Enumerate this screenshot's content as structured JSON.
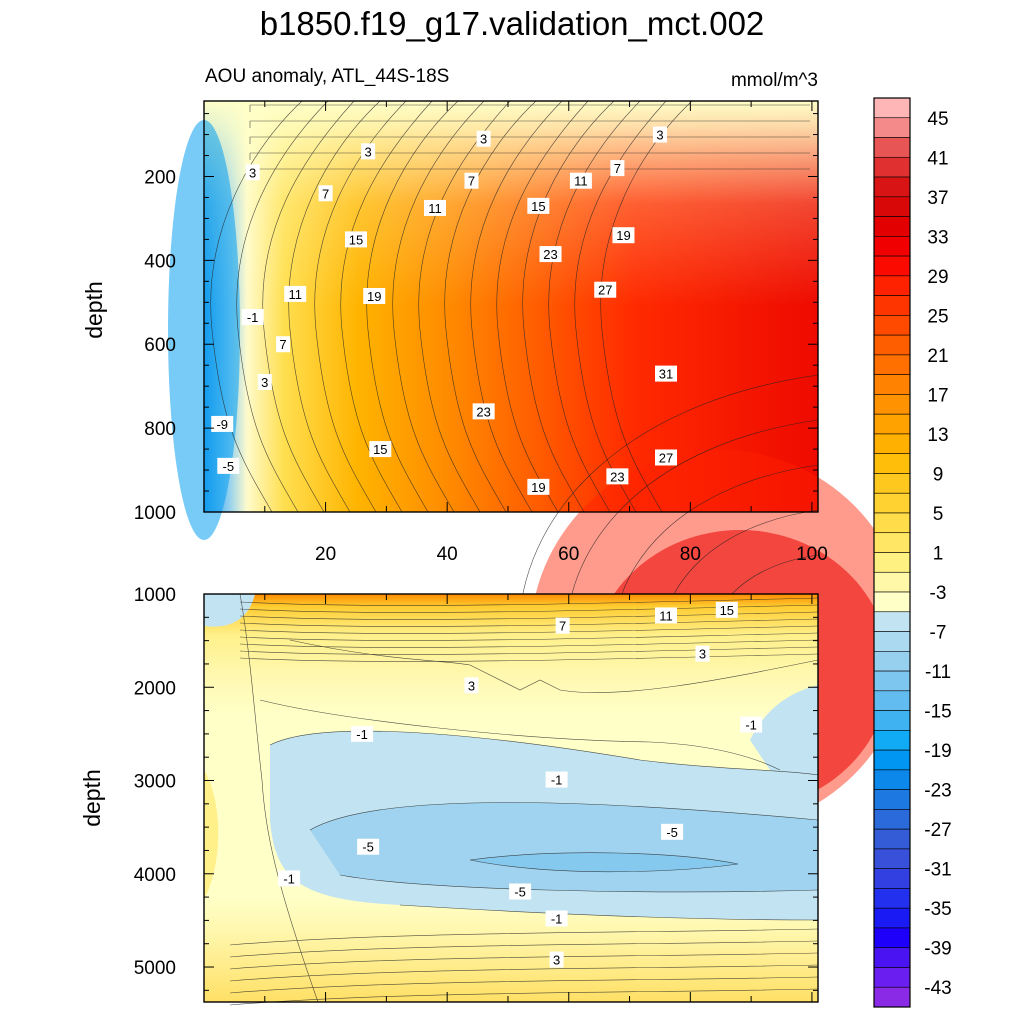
{
  "chart_data": [
    {
      "type": "heatmap",
      "title": "b1850.f19_g17.validation_mct.002",
      "subtitle_left": "AOU anomaly, ATL_44S-18S",
      "subtitle_right": "mmol/m^3",
      "xlabel": "",
      "ylabel": "depth",
      "xlim": [
        0,
        101
      ],
      "ylim": [
        1000,
        20
      ],
      "y_reversed": true,
      "xticks": [
        20,
        40,
        60,
        80,
        100
      ],
      "yticks": [
        200,
        400,
        600,
        800,
        1000
      ],
      "contour_labels": [
        {
          "text": "3",
          "x": 8,
          "y": 190
        },
        {
          "text": "3",
          "x": 27,
          "y": 140
        },
        {
          "text": "3",
          "x": 46,
          "y": 110
        },
        {
          "text": "3",
          "x": 75,
          "y": 100
        },
        {
          "text": "7",
          "x": 20,
          "y": 240
        },
        {
          "text": "7",
          "x": 44,
          "y": 210
        },
        {
          "text": "7",
          "x": 68,
          "y": 180
        },
        {
          "text": "11",
          "x": 38,
          "y": 275
        },
        {
          "text": "11",
          "x": 62,
          "y": 210
        },
        {
          "text": "15",
          "x": 25,
          "y": 350
        },
        {
          "text": "15",
          "x": 55,
          "y": 270
        },
        {
          "text": "19",
          "x": 69,
          "y": 340
        },
        {
          "text": "23",
          "x": 57,
          "y": 385
        },
        {
          "text": "27",
          "x": 66,
          "y": 470
        },
        {
          "text": "11",
          "x": 15,
          "y": 480
        },
        {
          "text": "19",
          "x": 28,
          "y": 485
        },
        {
          "text": "-1",
          "x": 8,
          "y": 535
        },
        {
          "text": "7",
          "x": 13,
          "y": 600
        },
        {
          "text": "3",
          "x": 10,
          "y": 690
        },
        {
          "text": "31",
          "x": 76,
          "y": 670
        },
        {
          "text": "23",
          "x": 46,
          "y": 760
        },
        {
          "text": "-9",
          "x": 3,
          "y": 790
        },
        {
          "text": "15",
          "x": 29,
          "y": 850
        },
        {
          "text": "27",
          "x": 76,
          "y": 870
        },
        {
          "text": "-5",
          "x": 4,
          "y": 890
        },
        {
          "text": "23",
          "x": 68,
          "y": 915
        },
        {
          "text": "19",
          "x": 55,
          "y": 940
        }
      ]
    },
    {
      "type": "heatmap",
      "xlabel": "",
      "ylabel": "depth",
      "xlim": [
        0,
        101
      ],
      "ylim": [
        5375,
        1000
      ],
      "y_reversed": true,
      "yticks": [
        1000,
        2000,
        3000,
        4000,
        5000
      ],
      "contour_labels": [
        {
          "text": "15",
          "x": 86,
          "y": 1170
        },
        {
          "text": "11",
          "x": 76,
          "y": 1230
        },
        {
          "text": "7",
          "x": 59,
          "y": 1340
        },
        {
          "text": "3",
          "x": 82,
          "y": 1640
        },
        {
          "text": "3",
          "x": 44,
          "y": 1980
        },
        {
          "text": "-1",
          "x": 26,
          "y": 2500
        },
        {
          "text": "-1",
          "x": 90,
          "y": 2400
        },
        {
          "text": "-1",
          "x": 58,
          "y": 2990
        },
        {
          "text": "-5",
          "x": 77,
          "y": 3550
        },
        {
          "text": "-5",
          "x": 27,
          "y": 3710
        },
        {
          "text": "-1",
          "x": 14,
          "y": 4050
        },
        {
          "text": "-5",
          "x": 52,
          "y": 4190
        },
        {
          "text": "-1",
          "x": 58,
          "y": 4480
        },
        {
          "text": "3",
          "x": 58,
          "y": 4920
        }
      ]
    }
  ],
  "colorbar": {
    "labels": [
      "45",
      "41",
      "37",
      "33",
      "29",
      "25",
      "21",
      "17",
      "13",
      "9",
      "5",
      "1",
      "-3",
      "-7",
      "-11",
      "-15",
      "-19",
      "-23",
      "-27",
      "-31",
      "-35",
      "-39",
      "-43"
    ],
    "colors": [
      "#ffb6b6",
      "#f58a8a",
      "#e85555",
      "#e03030",
      "#d81414",
      "#d80808",
      "#e30000",
      "#f00000",
      "#fb0a00",
      "#ff2200",
      "#ff3500",
      "#ff4a00",
      "#ff5e00",
      "#ff7000",
      "#ff8200",
      "#ff9200",
      "#ffa200",
      "#ffb000",
      "#ffbe0a",
      "#ffc81e",
      "#ffd232",
      "#ffdc4a",
      "#ffe665",
      "#fff082",
      "#fff8a8",
      "#ffffc8",
      "#c2e4f2",
      "#abd9ef",
      "#96d0ee",
      "#7dc6ef",
      "#63bcf0",
      "#3fb2f2",
      "#11aaf4",
      "#0096f2",
      "#0c87ea",
      "#1e78e2",
      "#2a6ada",
      "#335cd6",
      "#3850da",
      "#3240e2",
      "#2330ee",
      "#1a1af4",
      "#1e00fa",
      "#4a14f2",
      "#6a1ef0",
      "#8a2ae6"
    ]
  }
}
